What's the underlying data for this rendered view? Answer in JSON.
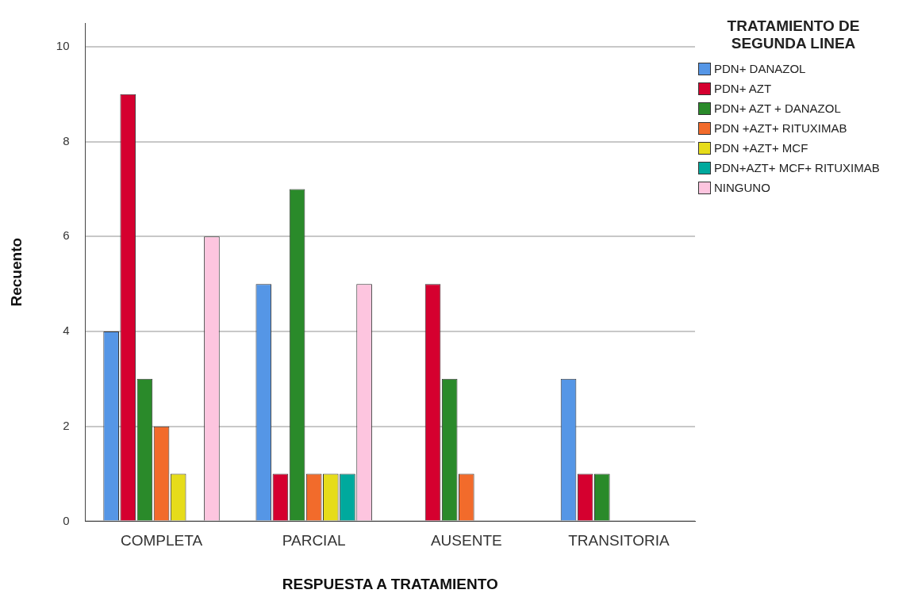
{
  "chart_data": {
    "type": "bar",
    "xlabel": "RESPUESTA A TRATAMIENTO",
    "ylabel": "Recuento",
    "legend_title": "TRATAMIENTO DE SEGUNDA LINEA",
    "legend": "right",
    "grid": "y",
    "categories": [
      "COMPLETA",
      "PARCIAL",
      "AUSENTE",
      "TRANSITORIA"
    ],
    "ylim": [
      0,
      10.5
    ],
    "yticks": [
      0,
      2,
      4,
      6,
      8,
      10
    ],
    "series": [
      {
        "name": "PDN+ DANAZOL",
        "color": "#5596e6",
        "values": [
          4,
          5,
          null,
          3
        ]
      },
      {
        "name": "PDN+ AZT",
        "color": "#d5002f",
        "values": [
          9,
          1,
          5,
          1
        ]
      },
      {
        "name": "PDN+ AZT + DANAZOL",
        "color": "#2a8a2a",
        "values": [
          3,
          7,
          3,
          1
        ]
      },
      {
        "name": "PDN +AZT+ RITUXIMAB",
        "color": "#f26b2b",
        "values": [
          2,
          1,
          1,
          null
        ]
      },
      {
        "name": "PDN +AZT+ MCF",
        "color": "#e6dc1a",
        "values": [
          1,
          1,
          null,
          null
        ]
      },
      {
        "name": "PDN+AZT+ MCF+ RITUXIMAB",
        "color": "#00a99d",
        "values": [
          null,
          1,
          null,
          null
        ]
      },
      {
        "name": "NINGUNO",
        "color": "#fdc5df",
        "values": [
          6,
          5,
          null,
          null
        ]
      }
    ]
  }
}
